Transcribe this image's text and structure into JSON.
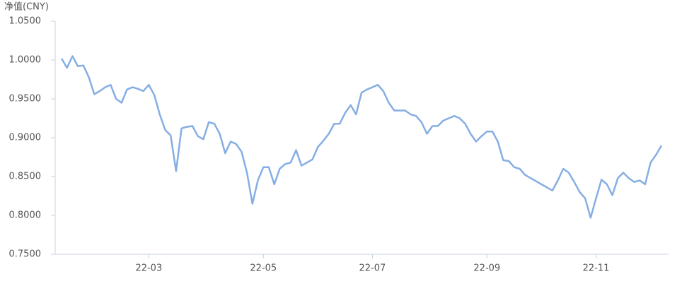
{
  "chart_data": {
    "type": "line",
    "y_label": "净值(CNY)",
    "color": "#85aee3",
    "categories": [
      null,
      null,
      null,
      null,
      null,
      null,
      null,
      null,
      null,
      null,
      null,
      null,
      null,
      null,
      null,
      null,
      "22-03",
      null,
      null,
      null,
      null,
      null,
      null,
      null,
      null,
      null,
      null,
      null,
      null,
      null,
      null,
      null,
      null,
      null,
      null,
      null,
      null,
      "22-05",
      null,
      null,
      null,
      null,
      null,
      null,
      null,
      null,
      null,
      null,
      null,
      null,
      null,
      null,
      null,
      null,
      null,
      null,
      null,
      "22-07",
      null,
      null,
      null,
      null,
      null,
      null,
      null,
      null,
      null,
      null,
      null,
      null,
      null,
      null,
      null,
      null,
      null,
      null,
      null,
      null,
      "22-09",
      null,
      null,
      null,
      null,
      null,
      null,
      null,
      null,
      null,
      null,
      null,
      null,
      null,
      null,
      null,
      null,
      null,
      null,
      null,
      "22-11",
      null,
      null,
      null,
      null,
      null,
      null,
      null,
      null,
      null,
      null,
      null,
      null
    ],
    "values": [
      1.002,
      0.99,
      1.005,
      0.992,
      0.993,
      0.978,
      0.956,
      0.96,
      0.965,
      0.968,
      0.95,
      0.945,
      0.962,
      0.965,
      0.963,
      0.96,
      0.968,
      0.955,
      0.93,
      0.91,
      0.903,
      0.857,
      0.912,
      0.914,
      0.915,
      0.902,
      0.898,
      0.92,
      0.918,
      0.905,
      0.88,
      0.895,
      0.892,
      0.882,
      0.855,
      0.815,
      0.845,
      0.862,
      0.862,
      0.84,
      0.86,
      0.866,
      0.868,
      0.884,
      0.864,
      0.868,
      0.872,
      0.888,
      0.896,
      0.905,
      0.918,
      0.918,
      0.932,
      0.942,
      0.93,
      0.958,
      0.962,
      0.965,
      0.968,
      0.96,
      0.945,
      0.935,
      0.935,
      0.935,
      0.93,
      0.928,
      0.92,
      0.905,
      0.915,
      0.915,
      0.922,
      0.925,
      0.928,
      0.925,
      0.918,
      0.905,
      0.895,
      0.902,
      0.908,
      0.908,
      0.895,
      0.871,
      0.87,
      0.862,
      0.86,
      0.852,
      0.848,
      0.844,
      0.84,
      0.836,
      0.832,
      0.845,
      0.86,
      0.855,
      0.843,
      0.83,
      0.822,
      0.797,
      0.822,
      0.846,
      0.84,
      0.826,
      0.848,
      0.855,
      0.848,
      0.843,
      0.845,
      0.84,
      0.868,
      0.878,
      0.89
    ],
    "ylim": [
      0.75,
      1.05
    ],
    "yticks": [
      {
        "value": 0.75,
        "label": "0.7500"
      },
      {
        "value": 0.8,
        "label": "0.8000"
      },
      {
        "value": 0.85,
        "label": "0.8500"
      },
      {
        "value": 0.9,
        "label": "0.9000"
      },
      {
        "value": 0.95,
        "label": "0.9500"
      },
      {
        "value": 1.0,
        "label": "1.0000"
      },
      {
        "value": 1.05,
        "label": "1.0500"
      }
    ]
  }
}
